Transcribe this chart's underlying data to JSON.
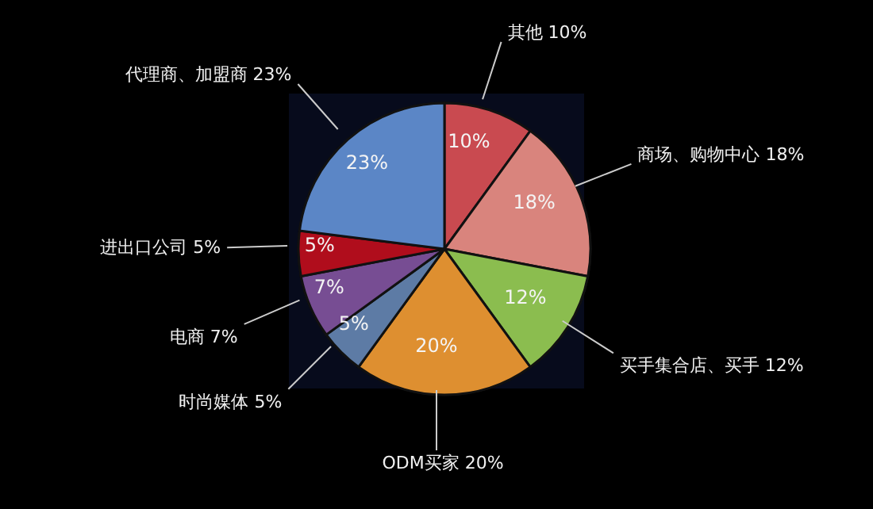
{
  "chart_data": {
    "type": "pie",
    "categories": [
      "其他",
      "商场、购物中心",
      "买手集合店、买手",
      "ODM买家",
      "时尚媒体",
      "电商",
      "进出口公司",
      "代理商、加盟商"
    ],
    "values": [
      10,
      18,
      12,
      20,
      5,
      7,
      5,
      23
    ],
    "value_labels": [
      "10%",
      "18%",
      "12%",
      "20%",
      "5%",
      "7%",
      "5%",
      "23%"
    ],
    "colors": [
      "#c94a50",
      "#d9847d",
      "#8bbd4f",
      "#de8f30",
      "#5d7ba5",
      "#774d93",
      "#b00d1c",
      "#5b86c6"
    ],
    "legend": false
  }
}
